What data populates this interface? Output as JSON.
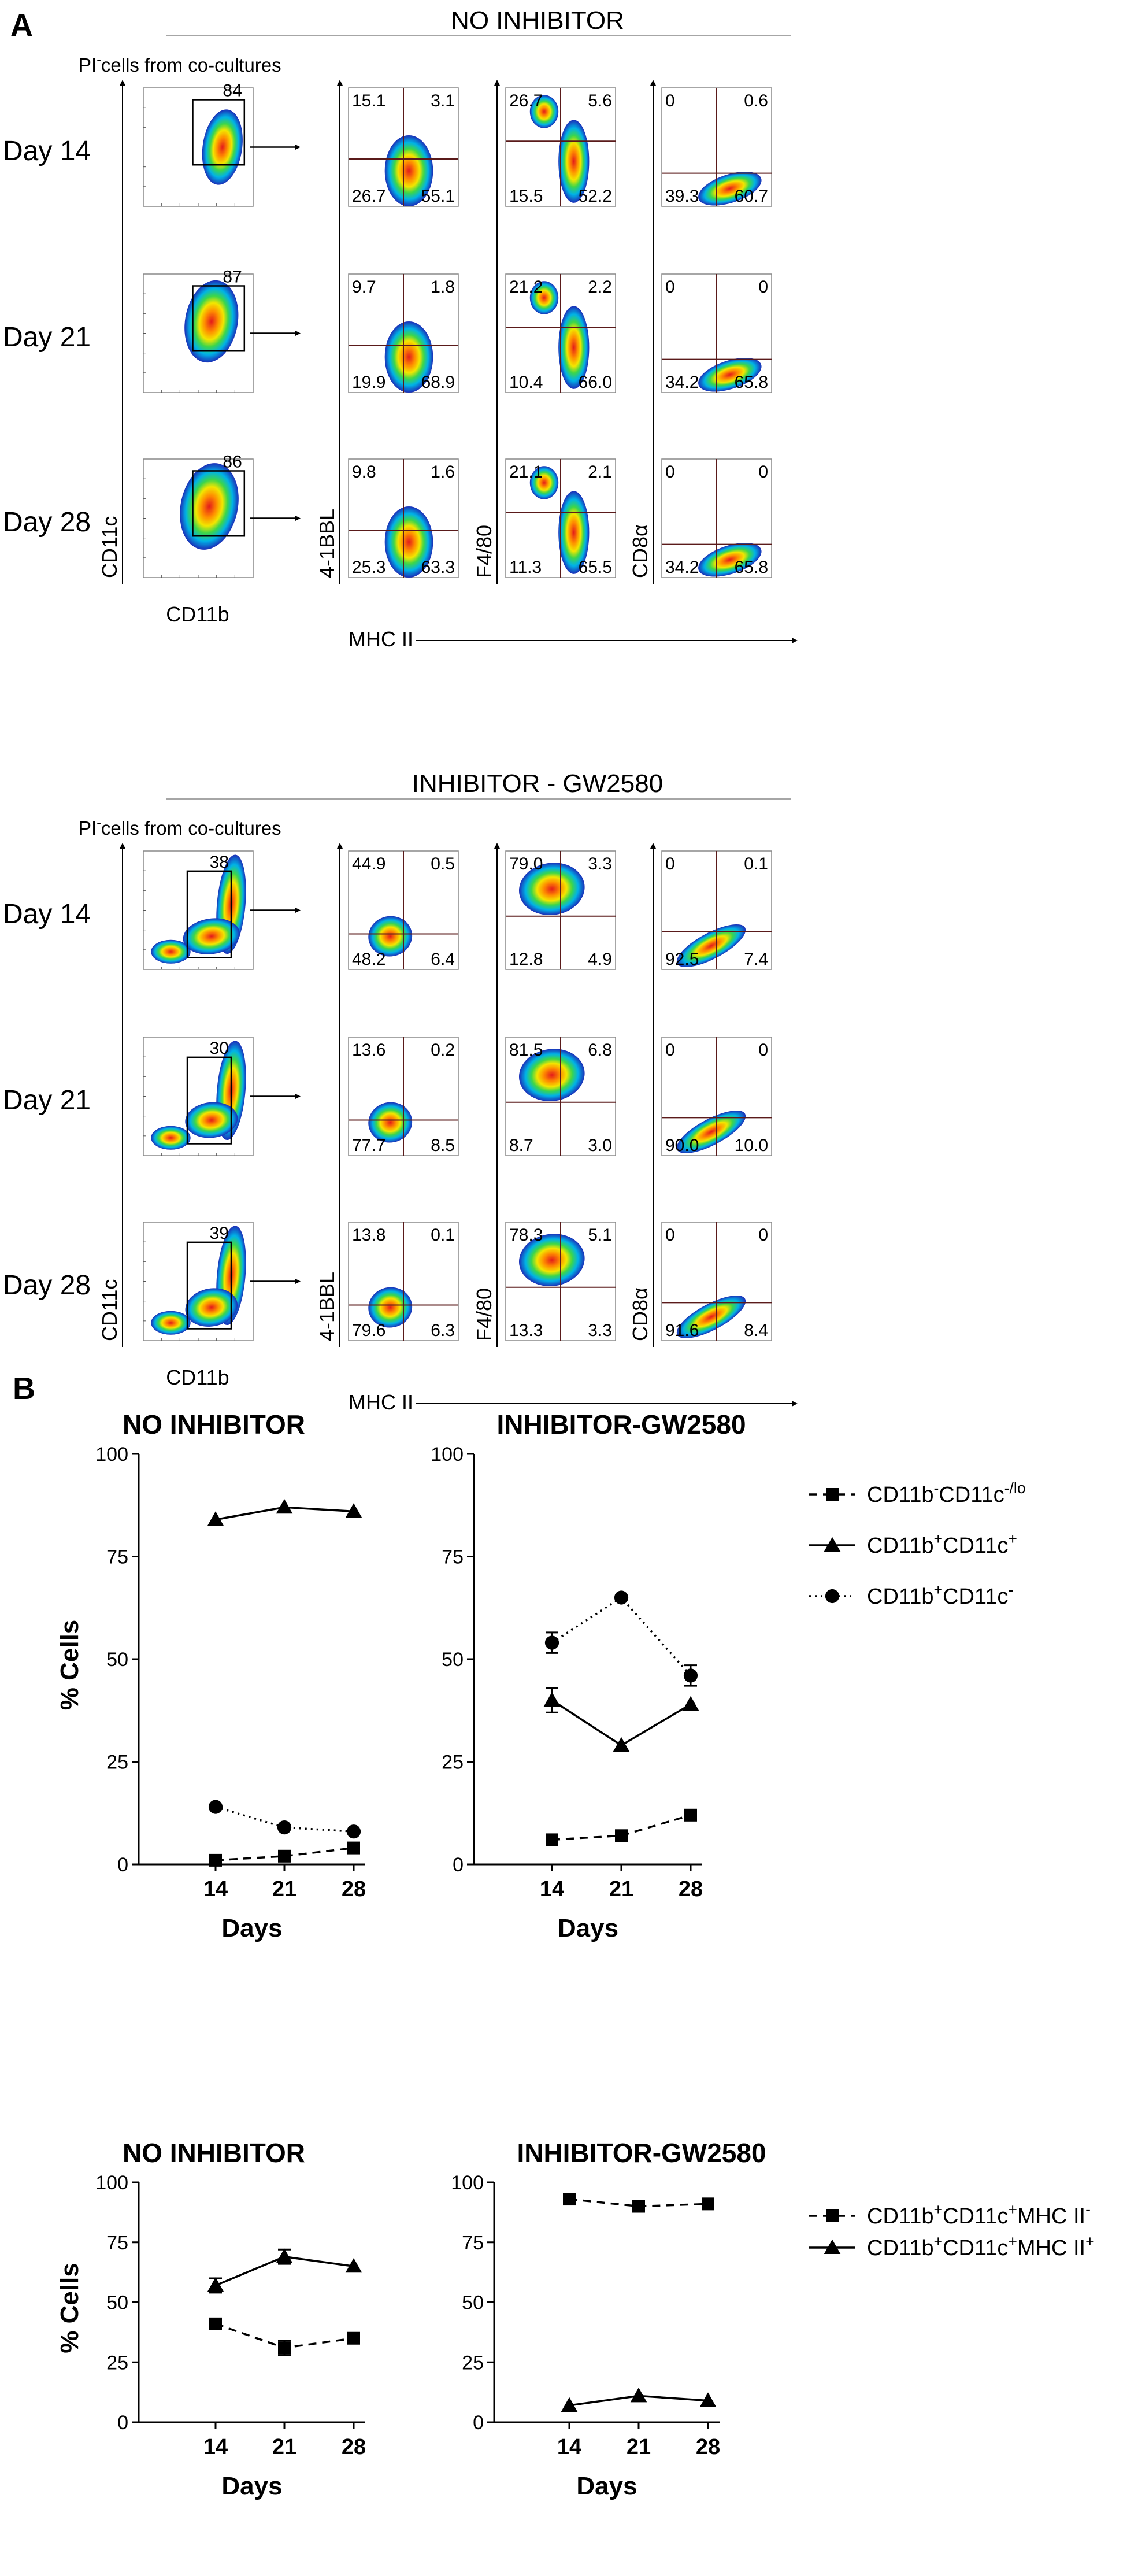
{
  "panel_labels": {
    "a": "A",
    "b": "B"
  },
  "flow": {
    "sections": [
      {
        "title": "NO INHIBITOR",
        "subtitle_pi": "PI",
        "subtitle_sup": "-",
        "subtitle_rest": "cells from co-cultures",
        "days": [
          "Day 14",
          "Day 21",
          "Day 28"
        ],
        "gate_values": [
          "84",
          "87",
          "86"
        ],
        "axes": {
          "cd11c": "CD11c",
          "cd11b": "CD11b",
          "bbl": "4-1BBL",
          "f480": "F4/80",
          "cd8a": "CD8α",
          "mhc": "MHC II"
        },
        "quads": [
          [
            [
              "15.1",
              "3.1",
              "26.7",
              "55.1"
            ],
            [
              "26.7",
              "5.6",
              "15.5",
              "52.2"
            ],
            [
              "0",
              "0.6",
              "39.3",
              "60.7"
            ]
          ],
          [
            [
              "9.7",
              "1.8",
              "19.9",
              "68.9"
            ],
            [
              "21.2",
              "2.2",
              "10.4",
              "66.0"
            ],
            [
              "0",
              "0",
              "34.2",
              "65.8"
            ]
          ],
          [
            [
              "9.8",
              "1.6",
              "25.3",
              "63.3"
            ],
            [
              "21.1",
              "2.1",
              "11.3",
              "65.5"
            ],
            [
              "0",
              "0",
              "34.2",
              "65.8"
            ]
          ]
        ]
      },
      {
        "title": "INHIBITOR - GW2580",
        "subtitle_pi": "PI",
        "subtitle_sup": "-",
        "subtitle_rest": "cells from co-cultures",
        "days": [
          "Day 14",
          "Day 21",
          "Day 28"
        ],
        "gate_values": [
          "38",
          "30",
          "39"
        ],
        "axes": {
          "cd11c": "CD11c",
          "cd11b": "CD11b",
          "bbl": "4-1BBL",
          "f480": "F4/80",
          "cd8a": "CD8α",
          "mhc": "MHC II"
        },
        "quads": [
          [
            [
              "44.9",
              "0.5",
              "48.2",
              "6.4"
            ],
            [
              "79.0",
              "3.3",
              "12.8",
              "4.9"
            ],
            [
              "0",
              "0.1",
              "92.5",
              "7.4"
            ]
          ],
          [
            [
              "13.6",
              "0.2",
              "77.7",
              "8.5"
            ],
            [
              "81.5",
              "6.8",
              "8.7",
              "3.0"
            ],
            [
              "0",
              "0",
              "90.0",
              "10.0"
            ]
          ],
          [
            [
              "13.8",
              "0.1",
              "79.6",
              "6.3"
            ],
            [
              "78.3",
              "5.1",
              "13.3",
              "3.3"
            ],
            [
              "0",
              "0",
              "91.6",
              "8.4"
            ]
          ]
        ]
      }
    ]
  },
  "legend_top": [
    {
      "base": "CD11b",
      "sup1": "-",
      "mid": "CD11c",
      "sup2": "-/lo",
      "marker": "square",
      "dash": "dashed"
    },
    {
      "base": "CD11b",
      "sup1": "+",
      "mid": "CD11c",
      "sup2": "+",
      "marker": "triangle",
      "dash": "solid"
    },
    {
      "base": "CD11b",
      "sup1": "+",
      "mid": "CD11c",
      "sup2": "-",
      "marker": "circle",
      "dash": "dotted"
    }
  ],
  "legend_bottom": [
    {
      "base": "CD11b",
      "sup1": "+",
      "mid": "CD11c",
      "sup2": "+",
      "tail": "MHC II",
      "sup3": "-",
      "marker": "square",
      "dash": "dashed"
    },
    {
      "base": "CD11b",
      "sup1": "+",
      "mid": "CD11c",
      "sup2": "+",
      "tail": "MHC II",
      "sup3": "+",
      "marker": "triangle",
      "dash": "solid"
    }
  ],
  "chart_data": [
    {
      "type": "line",
      "title": "NO INHIBITOR",
      "xlabel": "Days",
      "ylabel": "% Cells",
      "x": [
        14,
        21,
        28
      ],
      "xticks": [
        "14",
        "21",
        "28"
      ],
      "yticks": [
        "0",
        "25",
        "50",
        "75",
        "100"
      ],
      "ylim": [
        0,
        100
      ],
      "series": [
        {
          "name": "CD11b-CD11c-/lo",
          "values": [
            1,
            2,
            4
          ],
          "errors": [
            0,
            0,
            0
          ],
          "marker": "square",
          "dash": "dashed"
        },
        {
          "name": "CD11b+CD11c+",
          "values": [
            84,
            87,
            86
          ],
          "errors": [
            0,
            0,
            0
          ],
          "marker": "triangle",
          "dash": "solid"
        },
        {
          "name": "CD11b+CD11c-",
          "values": [
            14,
            9,
            8
          ],
          "errors": [
            0,
            0,
            0
          ],
          "marker": "circle",
          "dash": "dotted"
        }
      ]
    },
    {
      "type": "line",
      "title": "INHIBITOR-GW2580",
      "xlabel": "Days",
      "ylabel": "",
      "x": [
        14,
        21,
        28
      ],
      "xticks": [
        "14",
        "21",
        "28"
      ],
      "yticks": [
        "0",
        "25",
        "50",
        "75",
        "100"
      ],
      "ylim": [
        0,
        100
      ],
      "series": [
        {
          "name": "CD11b-CD11c-/lo",
          "values": [
            6,
            7,
            12
          ],
          "errors": [
            0,
            0,
            0
          ],
          "marker": "square",
          "dash": "dashed"
        },
        {
          "name": "CD11b+CD11c+",
          "values": [
            40,
            29,
            39
          ],
          "errors": [
            3,
            0,
            0
          ],
          "marker": "triangle",
          "dash": "solid"
        },
        {
          "name": "CD11b+CD11c-",
          "values": [
            54,
            65,
            46
          ],
          "errors": [
            2.5,
            0,
            2.5
          ],
          "marker": "circle",
          "dash": "dotted"
        }
      ]
    },
    {
      "type": "line",
      "title": "NO INHIBITOR",
      "xlabel": "Days",
      "ylabel": "% Cells",
      "x": [
        14,
        21,
        28
      ],
      "xticks": [
        "14",
        "21",
        "28"
      ],
      "yticks": [
        "0",
        "25",
        "50",
        "75",
        "100"
      ],
      "ylim": [
        0,
        100
      ],
      "series": [
        {
          "name": "CD11b+CD11c+MHC II-",
          "values": [
            41,
            31,
            35
          ],
          "errors": [
            1,
            3,
            0
          ],
          "marker": "square",
          "dash": "dashed"
        },
        {
          "name": "CD11b+CD11c+MHC II+",
          "values": [
            57,
            69,
            65
          ],
          "errors": [
            3,
            3,
            0
          ],
          "marker": "triangle",
          "dash": "solid"
        }
      ]
    },
    {
      "type": "line",
      "title": "INHIBITOR-GW2580",
      "xlabel": "Days",
      "ylabel": "",
      "x": [
        14,
        21,
        28
      ],
      "xticks": [
        "14",
        "21",
        "28"
      ],
      "yticks": [
        "0",
        "25",
        "50",
        "75",
        "100"
      ],
      "ylim": [
        0,
        100
      ],
      "series": [
        {
          "name": "CD11b+CD11c+MHC II-",
          "values": [
            93,
            90,
            91
          ],
          "errors": [
            0,
            1,
            0
          ],
          "marker": "square",
          "dash": "dashed"
        },
        {
          "name": "CD11b+CD11c+MHC II+",
          "values": [
            7,
            11,
            9
          ],
          "errors": [
            0,
            0,
            0
          ],
          "marker": "triangle",
          "dash": "solid"
        }
      ]
    }
  ]
}
